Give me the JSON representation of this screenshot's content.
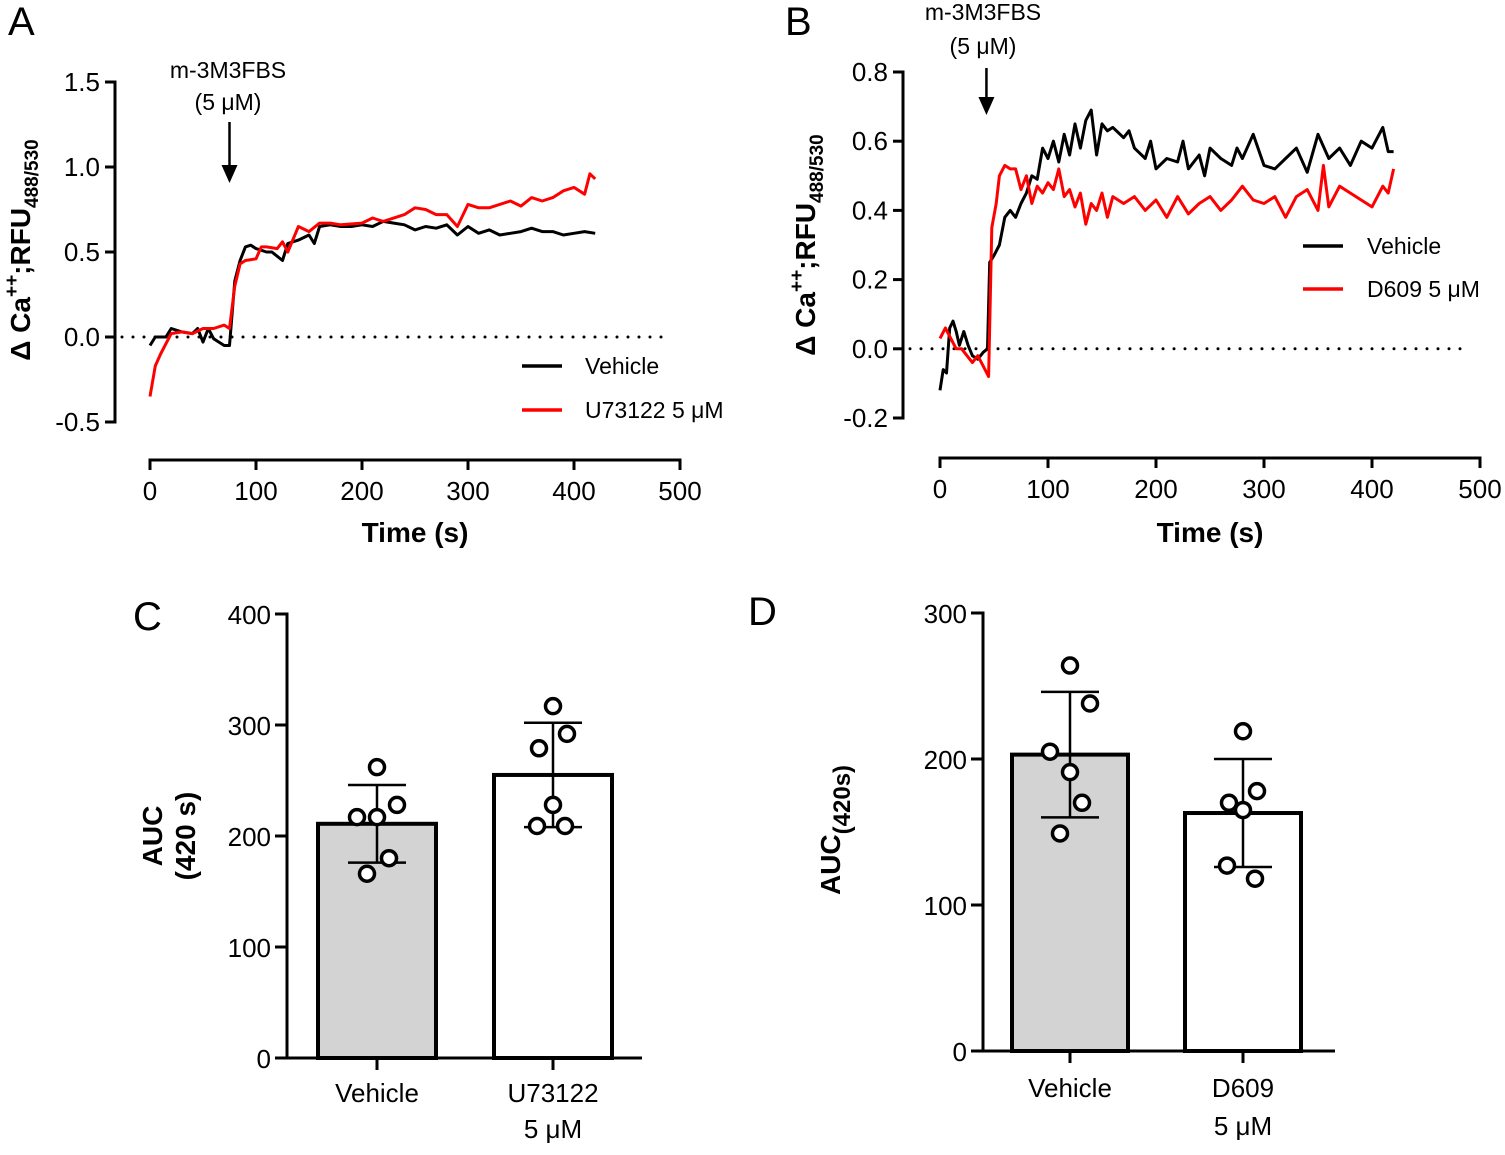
{
  "chart_data": [
    {
      "panel": "A",
      "type": "line",
      "xlabel": "Time (s)",
      "ylabel": {
        "main": "Δ Ca",
        "sup": "++",
        "mid": ";RFU",
        "sub": "488/530"
      },
      "xlim": [
        0,
        500
      ],
      "ylim": [
        -0.5,
        1.5
      ],
      "xticks": [
        "0",
        "100",
        "200",
        "300",
        "400",
        "500"
      ],
      "yticks": [
        "1.5",
        "1.0",
        "0.5",
        "0.0",
        "-0.5"
      ],
      "baseline": 0,
      "annotation": {
        "line1": "m-3M3FBS",
        "line2": "(5 μM)",
        "time": 75
      },
      "legend_position": "bottom-right",
      "series": [
        {
          "name": "Vehicle",
          "color": "#000000",
          "x": [
            0,
            5,
            15,
            20,
            30,
            40,
            45,
            50,
            55,
            60,
            65,
            70,
            75,
            80,
            85,
            90,
            95,
            100,
            110,
            115,
            125,
            130,
            140,
            150,
            155,
            160,
            170,
            180,
            190,
            200,
            210,
            220,
            230,
            240,
            250,
            260,
            270,
            280,
            290,
            300,
            310,
            320,
            330,
            340,
            350,
            360,
            370,
            380,
            390,
            400,
            410,
            420
          ],
          "y": [
            -0.05,
            0,
            0,
            0.05,
            0.03,
            0.02,
            0.05,
            -0.03,
            0.05,
            -0.01,
            -0.03,
            -0.05,
            -0.05,
            0.33,
            0.45,
            0.53,
            0.54,
            0.52,
            0.5,
            0.5,
            0.45,
            0.55,
            0.57,
            0.6,
            0.55,
            0.65,
            0.66,
            0.65,
            0.65,
            0.66,
            0.65,
            0.68,
            0.67,
            0.66,
            0.63,
            0.65,
            0.64,
            0.66,
            0.6,
            0.65,
            0.61,
            0.63,
            0.6,
            0.61,
            0.62,
            0.64,
            0.62,
            0.62,
            0.6,
            0.61,
            0.62,
            0.61
          ]
        },
        {
          "name": "U73122 5 μM",
          "color": "#ff0000",
          "x": [
            0,
            5,
            10,
            20,
            30,
            40,
            50,
            60,
            70,
            75,
            80,
            85,
            90,
            100,
            105,
            110,
            120,
            125,
            130,
            140,
            150,
            160,
            170,
            180,
            200,
            210,
            220,
            240,
            250,
            260,
            270,
            280,
            290,
            300,
            310,
            320,
            340,
            350,
            360,
            370,
            380,
            390,
            400,
            410,
            415,
            420
          ],
          "y": [
            -0.35,
            -0.17,
            -0.1,
            0.02,
            0.03,
            0.02,
            0.05,
            0.05,
            0.07,
            0.05,
            0.3,
            0.43,
            0.45,
            0.46,
            0.53,
            0.53,
            0.52,
            0.56,
            0.5,
            0.65,
            0.62,
            0.67,
            0.67,
            0.66,
            0.67,
            0.7,
            0.68,
            0.72,
            0.76,
            0.75,
            0.72,
            0.72,
            0.65,
            0.78,
            0.76,
            0.76,
            0.8,
            0.77,
            0.82,
            0.8,
            0.82,
            0.86,
            0.88,
            0.84,
            0.96,
            0.93
          ]
        }
      ]
    },
    {
      "panel": "B",
      "type": "line",
      "xlabel": "Time (s)",
      "ylabel": {
        "main": "Δ Ca",
        "sup": "++",
        "mid": ";RFU",
        "sub": "488/530"
      },
      "xlim": [
        0,
        500
      ],
      "ylim": [
        -0.2,
        0.8
      ],
      "xticks": [
        "0",
        "100",
        "200",
        "300",
        "400",
        "500"
      ],
      "yticks": [
        "0.8",
        "0.6",
        "0.4",
        "0.2",
        "0.0",
        "-0.2"
      ],
      "baseline": 0,
      "annotation": {
        "line1": "m-3M3FBS",
        "line2": "(5 μM)",
        "time": 43
      },
      "legend_position": "right",
      "series": [
        {
          "name": "Vehicle",
          "color": "#000000",
          "x": [
            0,
            3,
            6,
            9,
            12,
            15,
            18,
            22,
            26,
            30,
            35,
            40,
            44,
            46,
            50,
            55,
            60,
            65,
            70,
            75,
            80,
            85,
            90,
            95,
            100,
            105,
            110,
            115,
            120,
            125,
            130,
            135,
            140,
            145,
            150,
            155,
            160,
            170,
            175,
            180,
            190,
            195,
            200,
            210,
            220,
            225,
            230,
            240,
            245,
            250,
            260,
            270,
            275,
            280,
            290,
            300,
            310,
            320,
            330,
            340,
            350,
            360,
            370,
            380,
            390,
            400,
            410,
            415,
            420
          ],
          "y": [
            -0.12,
            -0.06,
            -0.07,
            0.06,
            0.08,
            0.05,
            0.01,
            0.05,
            0.01,
            -0.02,
            -0.03,
            -0.01,
            0,
            0.25,
            0.27,
            0.3,
            0.38,
            0.4,
            0.38,
            0.42,
            0.45,
            0.5,
            0.49,
            0.58,
            0.55,
            0.6,
            0.54,
            0.62,
            0.56,
            0.65,
            0.58,
            0.66,
            0.69,
            0.56,
            0.65,
            0.63,
            0.64,
            0.61,
            0.63,
            0.58,
            0.55,
            0.6,
            0.52,
            0.55,
            0.54,
            0.6,
            0.52,
            0.56,
            0.5,
            0.58,
            0.55,
            0.53,
            0.58,
            0.55,
            0.62,
            0.53,
            0.52,
            0.55,
            0.58,
            0.51,
            0.62,
            0.55,
            0.58,
            0.53,
            0.6,
            0.58,
            0.64,
            0.57,
            0.57
          ]
        },
        {
          "name": "D609 5 μM",
          "color": "#ff0000",
          "x": [
            0,
            5,
            10,
            15,
            20,
            25,
            30,
            35,
            40,
            45,
            48,
            52,
            55,
            60,
            65,
            70,
            75,
            80,
            85,
            90,
            95,
            100,
            105,
            110,
            115,
            120,
            125,
            130,
            135,
            140,
            145,
            150,
            155,
            160,
            170,
            180,
            190,
            200,
            210,
            220,
            230,
            240,
            250,
            260,
            270,
            280,
            290,
            300,
            310,
            320,
            330,
            340,
            350,
            355,
            360,
            370,
            380,
            390,
            400,
            410,
            415,
            420
          ],
          "y": [
            0.03,
            0.06,
            0.03,
            0,
            0,
            -0.02,
            -0.04,
            -0.02,
            -0.05,
            -0.08,
            0.35,
            0.42,
            0.5,
            0.53,
            0.52,
            0.52,
            0.46,
            0.5,
            0.42,
            0.47,
            0.45,
            0.48,
            0.46,
            0.52,
            0.44,
            0.46,
            0.41,
            0.45,
            0.36,
            0.42,
            0.4,
            0.45,
            0.38,
            0.44,
            0.42,
            0.44,
            0.4,
            0.43,
            0.38,
            0.44,
            0.39,
            0.42,
            0.44,
            0.4,
            0.43,
            0.47,
            0.43,
            0.42,
            0.44,
            0.38,
            0.44,
            0.46,
            0.4,
            0.53,
            0.41,
            0.47,
            0.45,
            0.43,
            0.41,
            0.47,
            0.45,
            0.52
          ]
        }
      ]
    },
    {
      "panel": "C",
      "type": "bar",
      "ylabel": {
        "main": "AUC",
        "sub": "(420 s)"
      },
      "ylim": [
        0,
        400
      ],
      "yticks": [
        "400",
        "300",
        "200",
        "100",
        "0"
      ],
      "categories": [
        [
          "Vehicle"
        ],
        [
          "U73122",
          "5 μM"
        ]
      ],
      "values": [
        211,
        255
      ],
      "sd": [
        35,
        47
      ],
      "bar_colors": [
        "#d3d3d3",
        "#ffffff"
      ],
      "points": [
        [
          262,
          228,
          217,
          217,
          180,
          166
        ],
        [
          317,
          292,
          279,
          228,
          209,
          209
        ]
      ]
    },
    {
      "panel": "D",
      "type": "bar",
      "ylabel": {
        "main": "AUC",
        "sub": "(420s)"
      },
      "ylim": [
        0,
        300
      ],
      "yticks": [
        "300",
        "200",
        "100",
        "0"
      ],
      "categories": [
        [
          "Vehicle"
        ],
        [
          "D609",
          "5 μM"
        ]
      ],
      "values": [
        203,
        163
      ],
      "sd": [
        43,
        37
      ],
      "bar_colors": [
        "#d3d3d3",
        "#ffffff"
      ],
      "points": [
        [
          264,
          238,
          205,
          191,
          170,
          149
        ],
        [
          219,
          178,
          170,
          165,
          127,
          118
        ]
      ]
    }
  ]
}
